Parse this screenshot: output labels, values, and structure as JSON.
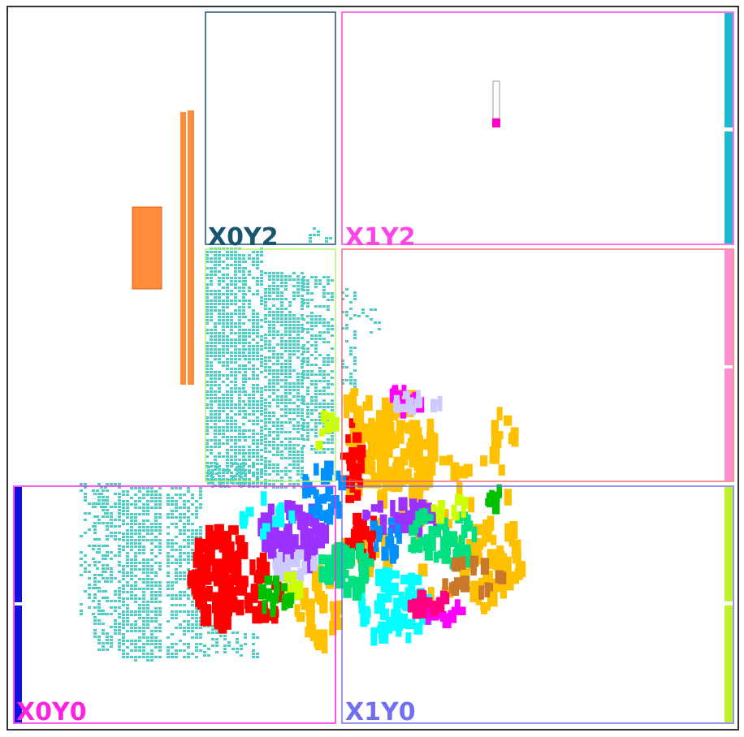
{
  "colors": {
    "frame": "#333333",
    "cyan_cells": "#4ecdc4",
    "io_orange": "#ff8c3a",
    "x0y0": "#ff22e0",
    "x1y0": "#7070f0",
    "x0y1": "#b8f07a",
    "x1y1": "#f07070",
    "x0y2": "#1a5570",
    "x1y2": "#ff44e8",
    "strip_blue": "#1010e0",
    "strip_teal": "#20b8d0",
    "strip_pink": "#ff90d0",
    "strip_lime": "#c0f030"
  },
  "regions": {
    "x0y0": {
      "label": "X0Y0"
    },
    "x1y0": {
      "label": "X1Y0"
    },
    "x0y1": {
      "label": ""
    },
    "x1y1": {
      "label": ""
    },
    "x0y2": {
      "label": "X0Y2"
    },
    "x1y2": {
      "label": "X1Y2"
    }
  },
  "palette": [
    "#ff0000",
    "#ffc000",
    "#9b30ff",
    "#00ffff",
    "#00e080",
    "#0090ff",
    "#ff00ff",
    "#cccaff",
    "#ccff00",
    "#00c000",
    "#c87828",
    "#ff0080",
    "#a040c0"
  ]
}
